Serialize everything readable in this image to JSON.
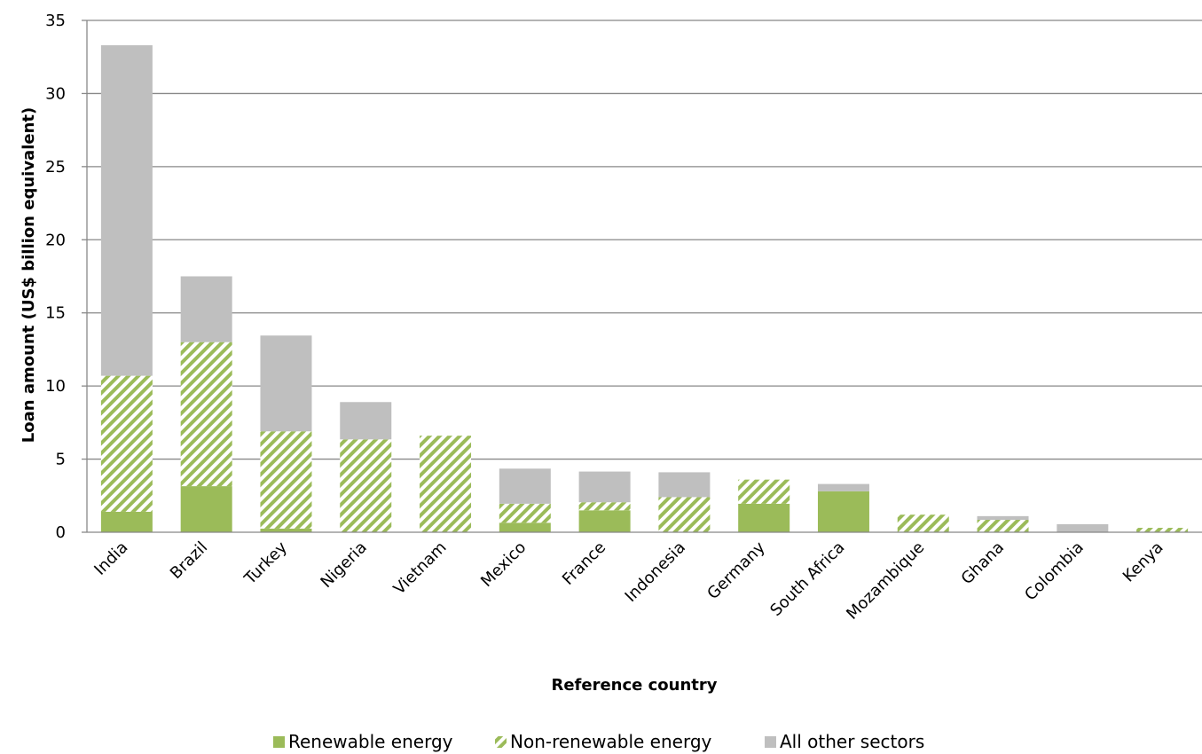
{
  "colors": {
    "renewable": "#9bbb59",
    "non_renewable_stripe": "#9bbb59",
    "other": "#bfbfbf",
    "grid": "#888888"
  },
  "chart_data": {
    "type": "bar",
    "stacked": true,
    "xlabel": "Reference country",
    "ylabel": "Loan amount (US$ billion equivalent)",
    "ylim": [
      0,
      35
    ],
    "yticks": [
      0,
      5,
      10,
      15,
      20,
      25,
      30,
      35
    ],
    "grid": true,
    "legend_position": "bottom",
    "categories": [
      "India",
      "Brazil",
      "Turkey",
      "Nigeria",
      "Vietnam",
      "Mexico",
      "France",
      "Indonesia",
      "Germany",
      "South Africa",
      "Mozambique",
      "Ghana",
      "Colombia",
      "Kenya"
    ],
    "series": [
      {
        "name": "Renewable energy",
        "pattern": "solid",
        "values": [
          1.4,
          3.15,
          0.25,
          0,
          0,
          0.65,
          1.5,
          0,
          1.95,
          2.8,
          0,
          0,
          0,
          0
        ]
      },
      {
        "name": "Non-renewable energy",
        "pattern": "hatched",
        "values": [
          9.3,
          9.85,
          6.65,
          6.35,
          6.6,
          1.3,
          0.55,
          2.4,
          1.65,
          0,
          1.2,
          0.85,
          0,
          0.3
        ]
      },
      {
        "name": "All other sectors",
        "pattern": "solid",
        "values": [
          22.6,
          4.5,
          6.55,
          2.55,
          0,
          2.4,
          2.1,
          1.7,
          0,
          0.5,
          0,
          0.25,
          0.55,
          0
        ]
      }
    ]
  }
}
